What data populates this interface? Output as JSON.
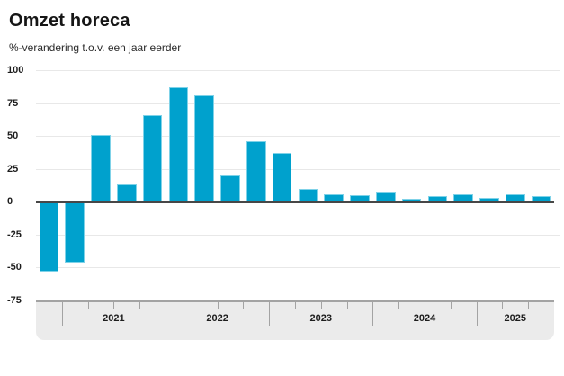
{
  "header": {
    "title": "Omzet horeca",
    "subtitle": "%-verandering t.o.v. een jaar eerder"
  },
  "chart_data": {
    "type": "bar",
    "title": "Omzet horeca",
    "subtitle": "%-verandering t.o.v. een jaar eerder",
    "unit": "percent change year-on-year",
    "categories": [
      "2020 Q4",
      "2021 Q1",
      "2021 Q2",
      "2021 Q3",
      "2021 Q4",
      "2022 Q1",
      "2022 Q2",
      "2022 Q3",
      "2022 Q4",
      "2023 Q1",
      "2023 Q2",
      "2023 Q3",
      "2023 Q4",
      "2024 Q1",
      "2024 Q2",
      "2024 Q3",
      "2024 Q4",
      "2025 Q1",
      "2025 Q2",
      "2025 Q3"
    ],
    "values": [
      -53,
      -46,
      51,
      13,
      66,
      87,
      81,
      20,
      46,
      37,
      10,
      6,
      5,
      7,
      2,
      4,
      6,
      3,
      6,
      4
    ],
    "ylim": [
      -75,
      100
    ],
    "yticks": [
      100,
      75,
      50,
      25,
      0,
      -25,
      -50,
      -75
    ],
    "x_year_labels": [
      "2021",
      "2022",
      "2023",
      "2024",
      "2025"
    ],
    "quarters_before_first_year": 1,
    "grid": true,
    "legend": "none",
    "bar_color": "#00a1cd",
    "bar_edge_color": "#7fd2e8",
    "gridline_color": "#e8e8e8",
    "zero_line_color": "#474747",
    "axis_band_color": "#ebebeb",
    "tick_color": "#a3a3a3"
  }
}
